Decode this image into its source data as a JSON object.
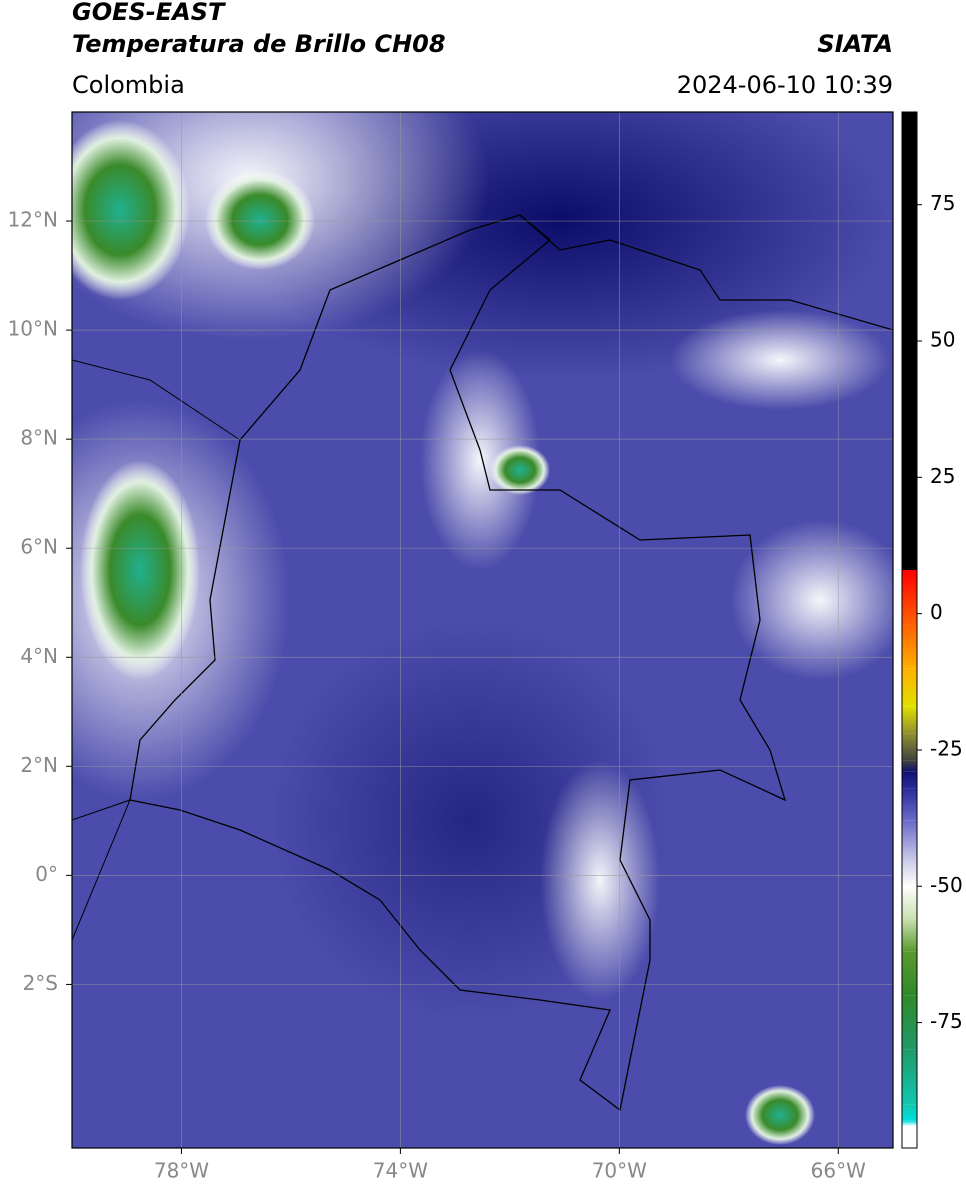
{
  "header": {
    "title": "GOES-EAST",
    "subtitle": "Temperatura de Brillo CH08",
    "source": "SIATA",
    "region": "Colombia",
    "datetime": "2024-06-10 10:39"
  },
  "chart_data": {
    "type": "map",
    "xlim": [
      -80,
      -65
    ],
    "ylim": [
      -5,
      14
    ],
    "grid": true,
    "xticks": [
      {
        "value": -78,
        "label": "78°W"
      },
      {
        "value": -74,
        "label": "74°W"
      },
      {
        "value": -70,
        "label": "70°W"
      },
      {
        "value": -66,
        "label": "66°W"
      }
    ],
    "yticks": [
      {
        "value": -2,
        "label": "2°S"
      },
      {
        "value": 0,
        "label": "0°"
      },
      {
        "value": 2,
        "label": "2°N"
      },
      {
        "value": 4,
        "label": "4°N"
      },
      {
        "value": 6,
        "label": "6°N"
      },
      {
        "value": 8,
        "label": "8°N"
      },
      {
        "value": 10,
        "label": "10°N"
      },
      {
        "value": 12,
        "label": "12°N"
      }
    ],
    "colorbar": {
      "lim": [
        -98,
        92
      ],
      "ticks": [
        -75,
        -50,
        -25,
        0,
        25,
        50,
        75
      ],
      "stops": [
        {
          "value": -98,
          "color": "#ffffff"
        },
        {
          "value": -94,
          "color": "#ffffff"
        },
        {
          "value": -93,
          "color": "#00e0e0"
        },
        {
          "value": -90,
          "color": "#10c8b0"
        },
        {
          "value": -80,
          "color": "#1f9a6a"
        },
        {
          "value": -70,
          "color": "#2f8a2a"
        },
        {
          "value": -62,
          "color": "#5a9a30"
        },
        {
          "value": -56,
          "color": "#c8e0b0"
        },
        {
          "value": -50,
          "color": "#ffffff"
        },
        {
          "value": -45,
          "color": "#c8c8e8"
        },
        {
          "value": -38,
          "color": "#6a6ac8"
        },
        {
          "value": -32,
          "color": "#2a2a9a"
        },
        {
          "value": -29,
          "color": "#101070"
        },
        {
          "value": -27,
          "color": "#404040"
        },
        {
          "value": -22,
          "color": "#909030"
        },
        {
          "value": -17,
          "color": "#e0e000"
        },
        {
          "value": -10,
          "color": "#ffb000"
        },
        {
          "value": -2,
          "color": "#ff6000"
        },
        {
          "value": 8,
          "color": "#ff0000"
        },
        {
          "value": 8,
          "color": "#000000"
        },
        {
          "value": 92,
          "color": "#000000"
        }
      ]
    }
  }
}
